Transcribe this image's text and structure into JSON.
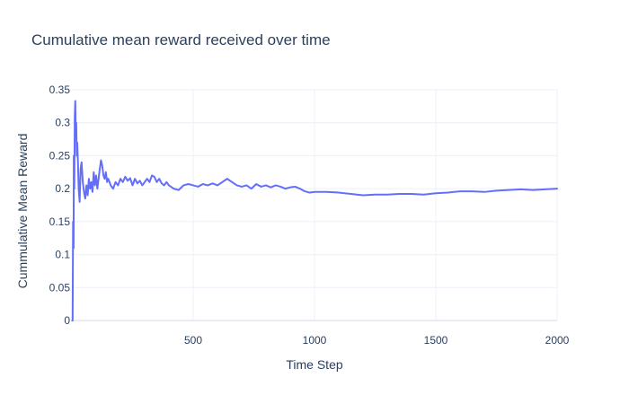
{
  "chart_data": {
    "type": "line",
    "title": "Cumulative mean reward received over time",
    "xlabel": "Time Step",
    "ylabel": "Cummulative Mean Reward",
    "xlim": [
      0,
      2000
    ],
    "ylim": [
      0,
      0.35
    ],
    "grid": true,
    "legend": "none",
    "x_ticks": [
      500,
      1000,
      1500,
      2000
    ],
    "y_ticks": [
      0,
      0.05,
      0.1,
      0.15,
      0.2,
      0.25,
      0.3,
      0.35
    ],
    "x_tick_labels": [
      "500",
      "1000",
      "1500",
      "2000"
    ],
    "y_tick_labels": [
      "0",
      "0.05",
      "0.1",
      "0.15",
      "0.2",
      "0.25",
      "0.3",
      "0.35"
    ],
    "series": [
      {
        "color": "#636efa",
        "x": [
          1,
          3,
          5,
          7,
          8,
          10,
          12,
          14,
          16,
          18,
          20,
          22,
          25,
          28,
          32,
          36,
          40,
          45,
          50,
          55,
          60,
          65,
          70,
          75,
          80,
          85,
          90,
          95,
          100,
          105,
          110,
          115,
          120,
          125,
          130,
          135,
          140,
          145,
          150,
          160,
          170,
          180,
          190,
          200,
          210,
          220,
          230,
          240,
          250,
          260,
          270,
          280,
          290,
          300,
          310,
          320,
          330,
          340,
          350,
          360,
          370,
          380,
          390,
          400,
          420,
          440,
          460,
          480,
          500,
          520,
          540,
          560,
          580,
          600,
          620,
          640,
          660,
          680,
          700,
          720,
          740,
          760,
          780,
          800,
          820,
          840,
          860,
          880,
          900,
          920,
          940,
          960,
          980,
          1000,
          1050,
          1100,
          1150,
          1200,
          1250,
          1300,
          1350,
          1400,
          1450,
          1500,
          1550,
          1600,
          1650,
          1700,
          1750,
          1800,
          1850,
          1900,
          1950,
          2000
        ],
        "y": [
          0.0,
          0.0,
          0.15,
          0.11,
          0.25,
          0.2,
          0.31,
          0.333,
          0.28,
          0.3,
          0.25,
          0.27,
          0.24,
          0.2,
          0.18,
          0.23,
          0.24,
          0.21,
          0.195,
          0.185,
          0.205,
          0.19,
          0.215,
          0.2,
          0.21,
          0.195,
          0.225,
          0.205,
          0.22,
          0.2,
          0.215,
          0.23,
          0.243,
          0.235,
          0.22,
          0.215,
          0.225,
          0.21,
          0.215,
          0.205,
          0.2,
          0.21,
          0.205,
          0.215,
          0.21,
          0.218,
          0.212,
          0.216,
          0.205,
          0.215,
          0.208,
          0.212,
          0.205,
          0.21,
          0.215,
          0.21,
          0.22,
          0.218,
          0.21,
          0.215,
          0.208,
          0.205,
          0.21,
          0.205,
          0.2,
          0.198,
          0.205,
          0.207,
          0.205,
          0.203,
          0.207,
          0.205,
          0.208,
          0.205,
          0.21,
          0.215,
          0.21,
          0.205,
          0.203,
          0.205,
          0.2,
          0.207,
          0.203,
          0.205,
          0.202,
          0.205,
          0.203,
          0.2,
          0.202,
          0.203,
          0.2,
          0.196,
          0.194,
          0.195,
          0.195,
          0.194,
          0.192,
          0.19,
          0.191,
          0.191,
          0.192,
          0.192,
          0.191,
          0.193,
          0.194,
          0.196,
          0.196,
          0.195,
          0.197,
          0.198,
          0.199,
          0.198,
          0.199,
          0.2
        ]
      }
    ]
  }
}
